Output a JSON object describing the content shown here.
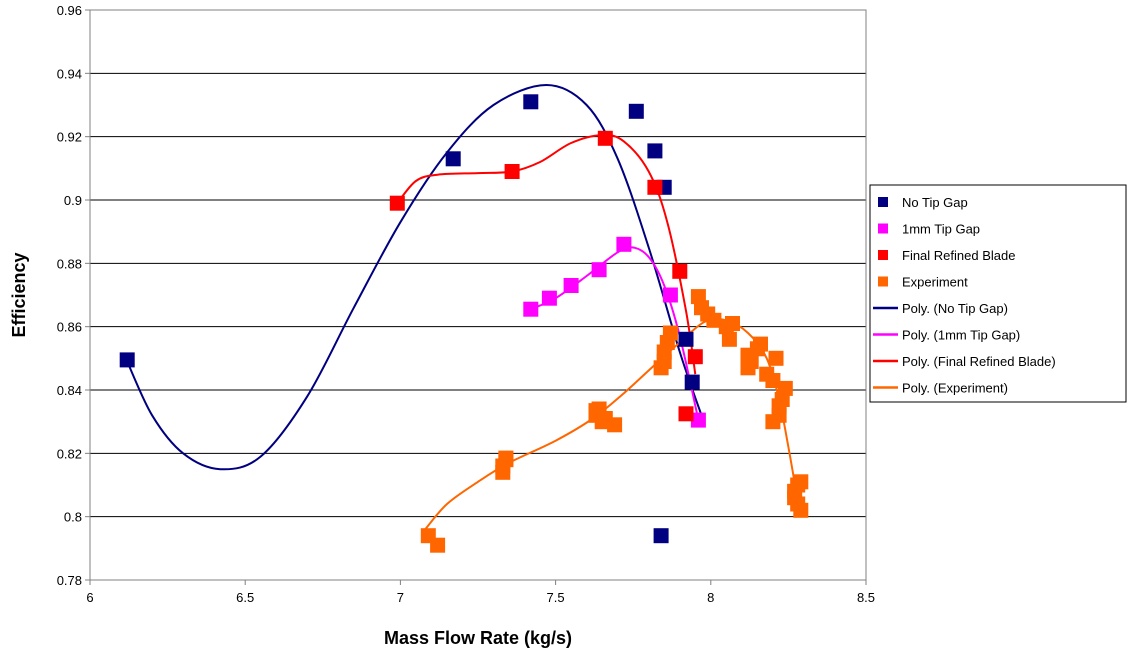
{
  "chart_data": {
    "type": "scatter",
    "title": "",
    "xlabel": "Mass Flow Rate (kg/s)",
    "ylabel": "Efficiency",
    "xlim": [
      6,
      8.5
    ],
    "ylim": [
      0.78,
      0.96
    ],
    "x_ticks": [
      "6",
      "6.5",
      "7",
      "7.5",
      "8",
      "8.5"
    ],
    "y_ticks": [
      "0.78",
      "0.8",
      "0.82",
      "0.84",
      "0.86",
      "0.88",
      "0.9",
      "0.92",
      "0.94",
      "0.96"
    ],
    "grid": "horizontal",
    "legend_position": "right",
    "series": [
      {
        "name": "No Tip Gap",
        "color": "#000080",
        "marker": "square",
        "points": [
          [
            6.12,
            0.8495
          ],
          [
            7.17,
            0.913
          ],
          [
            7.42,
            0.931
          ],
          [
            7.76,
            0.928
          ],
          [
            7.82,
            0.9155
          ],
          [
            7.85,
            0.904
          ],
          [
            7.92,
            0.856
          ],
          [
            7.94,
            0.8425
          ],
          [
            7.84,
            0.794
          ]
        ]
      },
      {
        "name": "1mm Tip Gap",
        "color": "#FF00FF",
        "marker": "square",
        "points": [
          [
            7.42,
            0.8655
          ],
          [
            7.48,
            0.869
          ],
          [
            7.55,
            0.873
          ],
          [
            7.64,
            0.878
          ],
          [
            7.72,
            0.886
          ],
          [
            7.87,
            0.87
          ],
          [
            7.96,
            0.8305
          ]
        ]
      },
      {
        "name": "Final Refined Blade",
        "color": "#FF0000",
        "marker": "square",
        "points": [
          [
            6.99,
            0.899
          ],
          [
            7.36,
            0.909
          ],
          [
            7.66,
            0.9195
          ],
          [
            7.82,
            0.904
          ],
          [
            7.9,
            0.8775
          ],
          [
            7.95,
            0.8505
          ],
          [
            7.92,
            0.8325
          ]
        ]
      },
      {
        "name": "Experiment",
        "color": "#FF6600",
        "marker": "square",
        "points": [
          [
            7.09,
            0.794
          ],
          [
            7.12,
            0.791
          ],
          [
            7.33,
            0.814
          ],
          [
            7.34,
            0.818
          ],
          [
            7.33,
            0.816
          ],
          [
            7.34,
            0.8185
          ],
          [
            7.63,
            0.8335
          ],
          [
            7.64,
            0.834
          ],
          [
            7.66,
            0.831
          ],
          [
            7.69,
            0.829
          ],
          [
            7.65,
            0.83
          ],
          [
            7.63,
            0.832
          ],
          [
            7.84,
            0.847
          ],
          [
            7.85,
            0.852
          ],
          [
            7.86,
            0.855
          ],
          [
            7.87,
            0.858
          ],
          [
            7.85,
            0.849
          ],
          [
            7.96,
            0.8695
          ],
          [
            7.97,
            0.866
          ],
          [
            7.99,
            0.864
          ],
          [
            8.01,
            0.862
          ],
          [
            8.05,
            0.86
          ],
          [
            8.06,
            0.856
          ],
          [
            8.07,
            0.861
          ],
          [
            8.12,
            0.851
          ],
          [
            8.12,
            0.847
          ],
          [
            8.13,
            0.849
          ],
          [
            8.15,
            0.853
          ],
          [
            8.16,
            0.8545
          ],
          [
            8.18,
            0.845
          ],
          [
            8.2,
            0.843
          ],
          [
            8.21,
            0.85
          ],
          [
            8.2,
            0.83
          ],
          [
            8.22,
            0.832
          ],
          [
            8.23,
            0.837
          ],
          [
            8.24,
            0.8405
          ],
          [
            8.22,
            0.835
          ],
          [
            8.27,
            0.806
          ],
          [
            8.28,
            0.81
          ],
          [
            8.29,
            0.811
          ],
          [
            8.28,
            0.804
          ],
          [
            8.29,
            0.802
          ],
          [
            8.27,
            0.808
          ]
        ]
      }
    ],
    "trendlines": [
      {
        "name": "Poly. (No Tip Gap)",
        "color": "#000080",
        "points": [
          [
            6.12,
            0.849
          ],
          [
            6.2,
            0.832
          ],
          [
            6.3,
            0.82
          ],
          [
            6.42,
            0.815
          ],
          [
            6.55,
            0.819
          ],
          [
            6.7,
            0.838
          ],
          [
            6.85,
            0.866
          ],
          [
            7.0,
            0.893
          ],
          [
            7.15,
            0.915
          ],
          [
            7.3,
            0.93
          ],
          [
            7.47,
            0.9363
          ],
          [
            7.6,
            0.93
          ],
          [
            7.7,
            0.913
          ],
          [
            7.8,
            0.885
          ],
          [
            7.9,
            0.852
          ],
          [
            7.97,
            0.832
          ]
        ]
      },
      {
        "name": "Poly. (1mm Tip Gap)",
        "color": "#FF00FF",
        "points": [
          [
            7.42,
            0.8655
          ],
          [
            7.5,
            0.869
          ],
          [
            7.6,
            0.876
          ],
          [
            7.7,
            0.8835
          ],
          [
            7.75,
            0.885
          ],
          [
            7.8,
            0.882
          ],
          [
            7.85,
            0.873
          ],
          [
            7.9,
            0.857
          ],
          [
            7.96,
            0.8305
          ]
        ]
      },
      {
        "name": "Poly. (Final Refined Blade)",
        "color": "#FF0000",
        "points": [
          [
            6.99,
            0.899
          ],
          [
            7.05,
            0.906
          ],
          [
            7.12,
            0.908
          ],
          [
            7.25,
            0.9085
          ],
          [
            7.36,
            0.909
          ],
          [
            7.45,
            0.912
          ],
          [
            7.55,
            0.918
          ],
          [
            7.65,
            0.9205
          ],
          [
            7.72,
            0.9185
          ],
          [
            7.8,
            0.909
          ],
          [
            7.86,
            0.893
          ],
          [
            7.92,
            0.865
          ],
          [
            7.95,
            0.845
          ]
        ]
      },
      {
        "name": "Poly. (Experiment)",
        "color": "#FF6600",
        "points": [
          [
            7.08,
            0.796
          ],
          [
            7.15,
            0.804
          ],
          [
            7.25,
            0.811
          ],
          [
            7.35,
            0.817
          ],
          [
            7.5,
            0.824
          ],
          [
            7.62,
            0.831
          ],
          [
            7.72,
            0.839
          ],
          [
            7.82,
            0.848
          ],
          [
            7.9,
            0.855
          ],
          [
            7.98,
            0.8615
          ],
          [
            8.05,
            0.862
          ],
          [
            8.12,
            0.858
          ],
          [
            8.18,
            0.85
          ],
          [
            8.22,
            0.837
          ],
          [
            8.25,
            0.822
          ],
          [
            8.28,
            0.805
          ]
        ]
      }
    ]
  }
}
